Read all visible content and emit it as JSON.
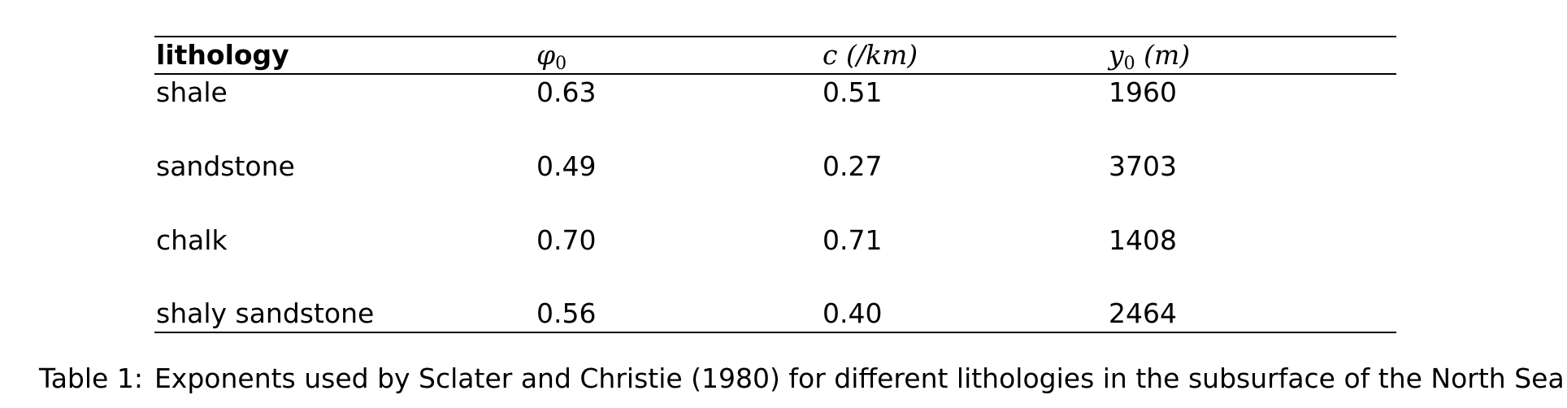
{
  "table": {
    "header": {
      "lithology": "lithology",
      "phi_symbol": "φ",
      "phi_sub": "0",
      "c_symbol": "c",
      "c_unit": "(/km)",
      "y_symbol": "y",
      "y_sub": "0",
      "y_unit": "(m)"
    },
    "rows": [
      {
        "lithology": "shale",
        "phi0": "0.63",
        "c": "0.51",
        "y0": "1960"
      },
      {
        "lithology": "sandstone",
        "phi0": "0.49",
        "c": "0.27",
        "y0": "3703"
      },
      {
        "lithology": "chalk",
        "phi0": "0.70",
        "c": "0.71",
        "y0": "1408"
      },
      {
        "lithology": "shaly sandstone",
        "phi0": "0.56",
        "c": "0.40",
        "y0": "2464"
      }
    ]
  },
  "caption": {
    "label": "Table 1:",
    "text": "Exponents used by Sclater and Christie (1980) for different lithologies in the subsurface of the North Sea."
  }
}
